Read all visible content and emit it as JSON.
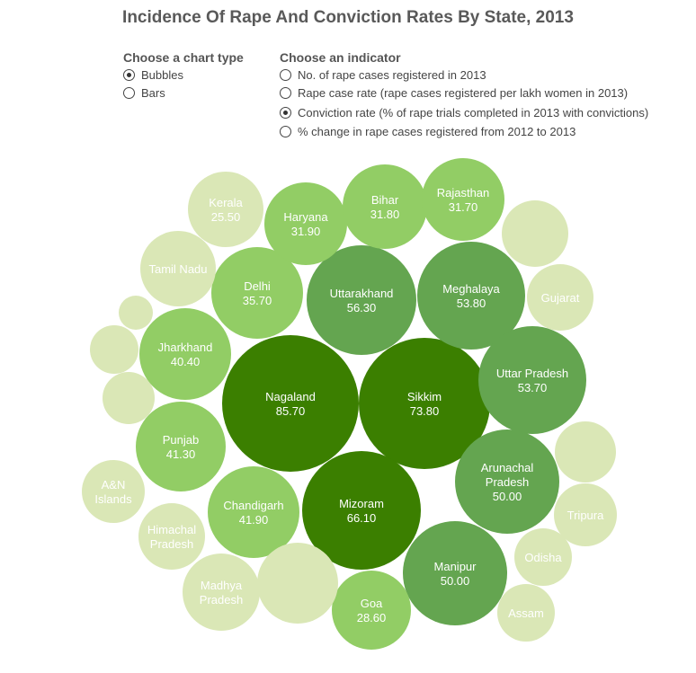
{
  "title": "Incidence Of Rape And Conviction Rates By State, 2013",
  "controls": {
    "chart_type": {
      "heading": "Choose a chart type",
      "options": [
        {
          "label": "Bubbles",
          "selected": true
        },
        {
          "label": "Bars",
          "selected": false
        }
      ]
    },
    "indicator": {
      "heading": "Choose an indicator",
      "options": [
        {
          "label": "No. of rape cases registered in 2013",
          "selected": false
        },
        {
          "label": "Rape case rate (rape cases registered per lakh women in 2013)",
          "selected": false
        },
        {
          "label": "Conviction rate  (% of rape trials completed in 2013 with convictions)",
          "selected": true
        },
        {
          "label": "% change in rape cases registered from 2012 to 2013",
          "selected": false
        }
      ]
    }
  },
  "colors": {
    "darkest": "#3b7f00",
    "dark": "#64a550",
    "medium": "#92cd65",
    "light": "#dae7b6"
  },
  "chart_data": {
    "type": "bubble",
    "title": "Incidence Of Rape And Conviction Rates By State, 2013",
    "value_label": "Conviction rate  (% of rape trials completed in 2013 with convictions)",
    "bubbles": [
      {
        "label": "Nagaland",
        "value": 85.7,
        "value_text": "85.70"
      },
      {
        "label": "Sikkim",
        "value": 73.8,
        "value_text": "73.80"
      },
      {
        "label": "Mizoram",
        "value": 66.1,
        "value_text": "66.10"
      },
      {
        "label": "Uttarakhand",
        "value": 56.3,
        "value_text": "56.30"
      },
      {
        "label": "Meghalaya",
        "value": 53.8,
        "value_text": "53.80"
      },
      {
        "label": "Uttar Pradesh",
        "value": 53.7,
        "value_text": "53.70"
      },
      {
        "label": "Arunachal Pradesh",
        "value": 50.0,
        "value_text": "50.00"
      },
      {
        "label": "Manipur",
        "value": 50.0,
        "value_text": "50.00"
      },
      {
        "label": "Chandigarh",
        "value": 41.9,
        "value_text": "41.90"
      },
      {
        "label": "Punjab",
        "value": 41.3,
        "value_text": "41.30"
      },
      {
        "label": "Jharkhand",
        "value": 40.4,
        "value_text": "40.40"
      },
      {
        "label": "Delhi",
        "value": 35.7,
        "value_text": "35.70"
      },
      {
        "label": "Haryana",
        "value": 31.9,
        "value_text": "31.90"
      },
      {
        "label": "Bihar",
        "value": 31.8,
        "value_text": "31.80"
      },
      {
        "label": "Rajasthan",
        "value": 31.7,
        "value_text": "31.70"
      },
      {
        "label": "Goa",
        "value": 28.6,
        "value_text": "28.60"
      },
      {
        "label": "Kerala",
        "value": 25.5,
        "value_text": "25.50"
      },
      {
        "label": "Tamil Nadu",
        "value": null,
        "value_text": ""
      },
      {
        "label": "Gujarat",
        "value": null,
        "value_text": ""
      },
      {
        "label": "A&N Islands",
        "value": null,
        "value_text": ""
      },
      {
        "label": "Himachal Pradesh",
        "value": null,
        "value_text": ""
      },
      {
        "label": "Madhya Pradesh",
        "value": null,
        "value_text": ""
      },
      {
        "label": "Tripura",
        "value": null,
        "value_text": ""
      },
      {
        "label": "Odisha",
        "value": null,
        "value_text": ""
      },
      {
        "label": "Assam",
        "value": null,
        "value_text": ""
      },
      {
        "label": "",
        "value": null,
        "value_text": ""
      },
      {
        "label": "",
        "value": null,
        "value_text": ""
      },
      {
        "label": "",
        "value": null,
        "value_text": ""
      },
      {
        "label": "",
        "value": null,
        "value_text": ""
      },
      {
        "label": "",
        "value": null,
        "value_text": ""
      },
      {
        "label": "",
        "value": null,
        "value_text": ""
      }
    ]
  }
}
